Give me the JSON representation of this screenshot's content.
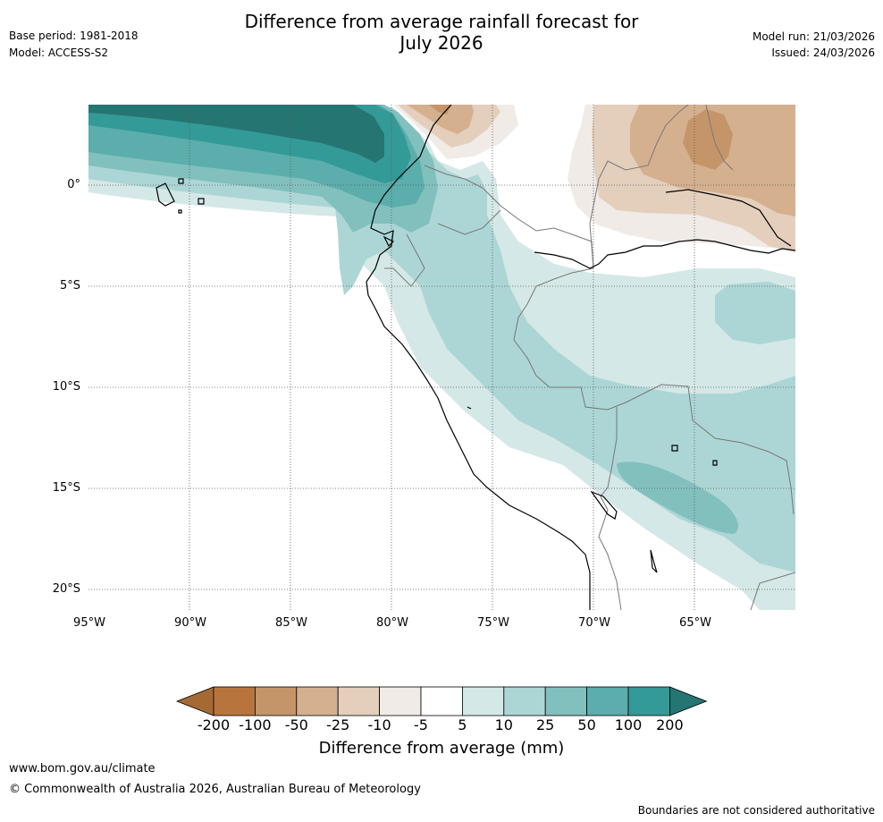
{
  "header": {
    "title_line1": "Difference from average rainfall forecast for",
    "title_line2": "July 2026",
    "base_period": "Base period: 1981-2018",
    "model": "Model: ACCESS-S2",
    "model_run": "Model run: 21/03/2026",
    "issued": "Issued: 24/03/2026"
  },
  "map": {
    "lat_labels": [
      "0°",
      "5°S",
      "10°S",
      "15°S",
      "20°S"
    ],
    "lon_labels": [
      "95°W",
      "90°W",
      "85°W",
      "80°W",
      "75°W",
      "70°W",
      "65°W"
    ]
  },
  "colorbar": {
    "label": "Difference from average (mm)",
    "ticks": [
      "-200",
      "-100",
      "-50",
      "-25",
      "-10",
      "-5",
      "5",
      "10",
      "25",
      "50",
      "100",
      "200"
    ],
    "colors": [
      "#a56a33",
      "#b7753d",
      "#c5956a",
      "#d4b08f",
      "#e3cfbc",
      "#f0ebe7",
      "#ffffff",
      "#d4e8e7",
      "#acd6d5",
      "#82c0be",
      "#5baeac",
      "#349a97",
      "#257572"
    ]
  },
  "footer": {
    "website": "www.bom.gov.au/climate",
    "copyright": "© Commonwealth of Australia 2026, Australian Bureau of Meteorology",
    "disclaimer": "Boundaries are not considered authoritative"
  }
}
